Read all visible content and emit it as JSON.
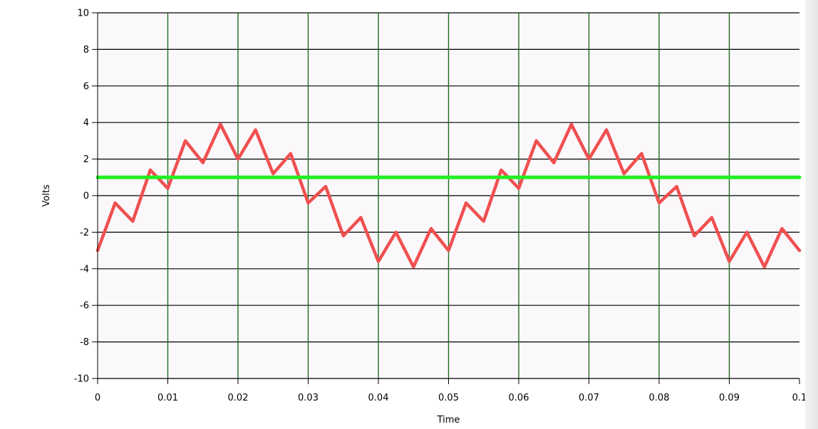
{
  "chart_data": {
    "type": "line",
    "title": "",
    "xlabel": "Time",
    "ylabel": "Volts",
    "xlim": [
      0,
      0.1
    ],
    "ylim": [
      -10,
      10
    ],
    "x_ticks": [
      "0",
      "0.01",
      "0.02",
      "0.03",
      "0.04",
      "0.05",
      "0.06",
      "0.07",
      "0.08",
      "0.09",
      "0.1"
    ],
    "y_ticks": [
      "10",
      "8",
      "6",
      "4",
      "2",
      "0",
      "-2",
      "-4",
      "-6",
      "-8",
      "-10"
    ],
    "grid": true,
    "colors": {
      "plot_background": "#fbf8fb",
      "horizontal_grid": "#000000",
      "vertical_grid": "#1f6b1f",
      "signal": "#f05050",
      "threshold": "#22ee22"
    },
    "series": [
      {
        "x": [
          0,
          0.0025,
          0.005,
          0.0075,
          0.01,
          0.0125,
          0.015,
          0.0175,
          0.02,
          0.0225,
          0.025,
          0.0275,
          0.03,
          0.0325,
          0.035,
          0.0375,
          0.04,
          0.0425,
          0.045,
          0.0475,
          0.05,
          0.0525,
          0.055,
          0.0575,
          0.06,
          0.0625,
          0.065,
          0.0675,
          0.07,
          0.0725,
          0.075,
          0.0775,
          0.08,
          0.0825,
          0.085,
          0.0875,
          0.09,
          0.0925,
          0.095,
          0.0975,
          0.1
        ],
        "y": [
          -3.0,
          -0.4,
          -1.4,
          1.4,
          0.4,
          3.0,
          1.8,
          3.9,
          2.0,
          3.6,
          1.2,
          2.3,
          -0.4,
          0.5,
          -2.2,
          -1.2,
          -3.6,
          -2.0,
          -3.9,
          -1.8,
          -3.0,
          -0.4,
          -1.4,
          1.4,
          0.4,
          3.0,
          1.8,
          3.9,
          2.0,
          3.6,
          1.2,
          2.3,
          -0.4,
          0.5,
          -2.2,
          -1.2,
          -3.6,
          -2.0,
          -3.9,
          -1.8,
          -3.0
        ]
      },
      {
        "x": [
          0,
          0.1
        ],
        "y": [
          1,
          1
        ]
      }
    ]
  }
}
